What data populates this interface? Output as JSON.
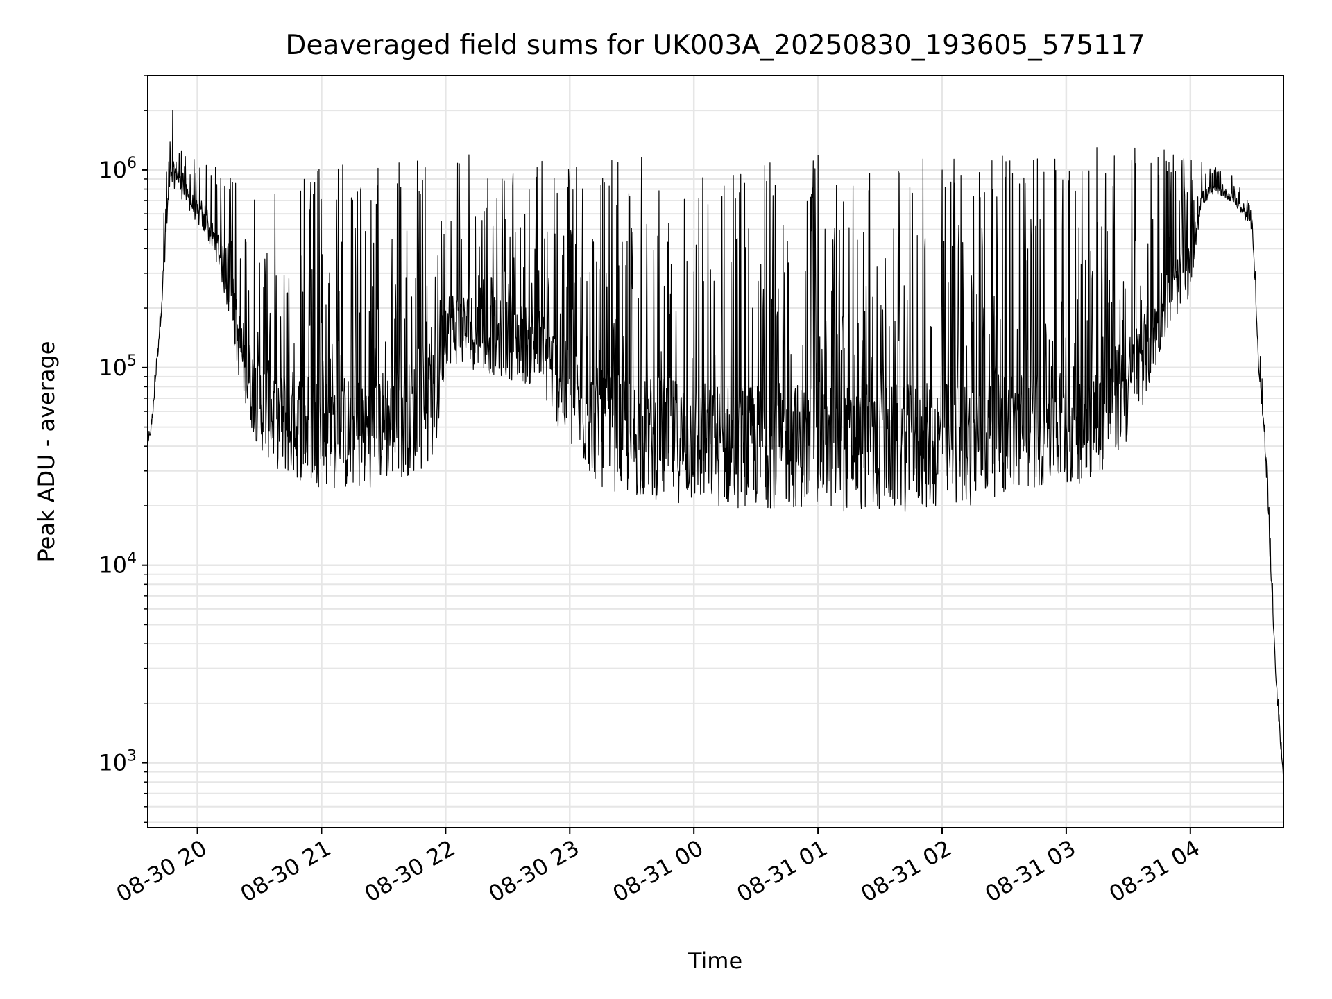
{
  "chart_data": {
    "type": "line",
    "title": "Deaveraged field sums for UK003A_20250830_193605_575117",
    "xlabel": "Time",
    "ylabel": "Peak ADU - average",
    "yscale": "log",
    "grid": true,
    "xlim": [
      "2025-08-30 19:36",
      "2025-08-31 04:45"
    ],
    "ylim": [
      470,
      3000000
    ],
    "x_ticks": [
      {
        "value": "2025-08-30 20:00",
        "label": "08-30 20"
      },
      {
        "value": "2025-08-30 21:00",
        "label": "08-30 21"
      },
      {
        "value": "2025-08-30 22:00",
        "label": "08-30 22"
      },
      {
        "value": "2025-08-30 23:00",
        "label": "08-30 23"
      },
      {
        "value": "2025-08-31 00:00",
        "label": "08-31 00"
      },
      {
        "value": "2025-08-31 01:00",
        "label": "08-31 01"
      },
      {
        "value": "2025-08-31 02:00",
        "label": "08-31 02"
      },
      {
        "value": "2025-08-31 03:00",
        "label": "08-31 03"
      },
      {
        "value": "2025-08-31 04:00",
        "label": "08-31 04"
      }
    ],
    "y_ticks": [
      {
        "value": 1000,
        "base": "10",
        "exp": "3"
      },
      {
        "value": 10000,
        "base": "10",
        "exp": "4"
      },
      {
        "value": 100000,
        "base": "10",
        "exp": "5"
      },
      {
        "value": 1000000,
        "base": "10",
        "exp": "6"
      }
    ],
    "series": [
      {
        "color": "#000000",
        "x": [
          "2025-08-30 19:36",
          "2025-08-30 19:38",
          "2025-08-30 19:40",
          "2025-08-30 19:42",
          "2025-08-30 19:44",
          "2025-08-30 19:46",
          "2025-08-30 19:48",
          "2025-08-30 19:50",
          "2025-08-30 19:52",
          "2025-08-30 19:54",
          "2025-08-30 19:56",
          "2025-08-30 19:58",
          "2025-08-30 20:00",
          "2025-08-30 20:05",
          "2025-08-30 20:10",
          "2025-08-30 20:15",
          "2025-08-30 20:20",
          "2025-08-30 20:25",
          "2025-08-30 20:30",
          "2025-08-30 20:35",
          "2025-08-30 20:40",
          "2025-08-30 20:50",
          "2025-08-30 21:00",
          "2025-08-30 21:15",
          "2025-08-30 21:30",
          "2025-08-30 21:45",
          "2025-08-30 21:55",
          "2025-08-30 22:00",
          "2025-08-30 22:15",
          "2025-08-30 22:30",
          "2025-08-30 22:45",
          "2025-08-30 23:00",
          "2025-08-30 23:15",
          "2025-08-30 23:30",
          "2025-08-30 23:45",
          "2025-08-31 00:00",
          "2025-08-31 00:15",
          "2025-08-31 00:30",
          "2025-08-31 00:45",
          "2025-08-31 01:00",
          "2025-08-31 01:15",
          "2025-08-31 01:30",
          "2025-08-31 01:45",
          "2025-08-31 02:00",
          "2025-08-31 02:15",
          "2025-08-31 02:30",
          "2025-08-31 02:45",
          "2025-08-31 03:00",
          "2025-08-31 03:15",
          "2025-08-31 03:30",
          "2025-08-31 03:40",
          "2025-08-31 03:50",
          "2025-08-31 04:00",
          "2025-08-31 04:05",
          "2025-08-31 04:10",
          "2025-08-31 04:15",
          "2025-08-31 04:20",
          "2025-08-31 04:25",
          "2025-08-31 04:30",
          "2025-08-31 04:33",
          "2025-08-31 04:36",
          "2025-08-31 04:39",
          "2025-08-31 04:42",
          "2025-08-31 04:45"
        ],
        "baseline": [
          40000,
          50000,
          90000,
          160000,
          300000,
          650000,
          800000,
          900000,
          750000,
          700000,
          650000,
          600000,
          550000,
          450000,
          350000,
          200000,
          100000,
          60000,
          45000,
          40000,
          35000,
          32000,
          30000,
          28000,
          32000,
          35000,
          40000,
          120000,
          110000,
          100000,
          90000,
          45000,
          30000,
          27000,
          26000,
          25000,
          24000,
          24000,
          24000,
          24000,
          23000,
          23000,
          23000,
          24000,
          25000,
          28000,
          30000,
          30000,
          34000,
          50000,
          90000,
          180000,
          250000,
          650000,
          750000,
          750000,
          700000,
          600000,
          500000,
          100000,
          40000,
          8000,
          2000,
          800
        ],
        "peak": [
          45000,
          60000,
          150000,
          300000,
          700000,
          1500000,
          2100000,
          1800000,
          1500000,
          1400000,
          1300000,
          1200000,
          1100000,
          1100000,
          1050000,
          950000,
          900000,
          850000,
          800000,
          850000,
          900000,
          1000000,
          1050000,
          1100000,
          1100000,
          1150000,
          1100000,
          1200000,
          1200000,
          1150000,
          1150000,
          1100000,
          1100000,
          1150000,
          1200000,
          1150000,
          1100000,
          1100000,
          1150000,
          1200000,
          1200000,
          1150000,
          1150000,
          1200000,
          1200000,
          1200000,
          1250000,
          1300000,
          1300000,
          1350000,
          1300000,
          1250000,
          1200000,
          1100000,
          1050000,
          1000000,
          950000,
          800000,
          650000,
          150000,
          60000,
          12000,
          2500,
          1000
        ]
      }
    ]
  }
}
